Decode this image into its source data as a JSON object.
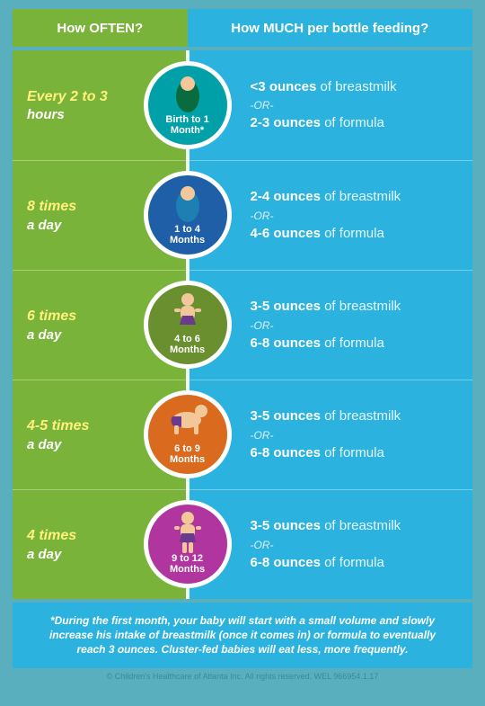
{
  "header": {
    "left": "How OFTEN?",
    "right": "How MUCH per bottle feeding?"
  },
  "colors": {
    "green": "#7ab33a",
    "blue": "#2bb2de",
    "yellow": "#fff27a",
    "white": "#ffffff"
  },
  "rows": [
    {
      "frequency_num": "Every 2 to 3",
      "frequency_unit": "hours",
      "age_label": "Birth to 1\nMonth*",
      "circle_color": "#00a0a8",
      "icon": "swaddle",
      "breastmilk": "<3 ounces",
      "formula": "2-3 ounces"
    },
    {
      "frequency_num": "8 times",
      "frequency_unit": "a day",
      "age_label": "1 to 4\nMonths",
      "circle_color": "#1e5fa8",
      "icon": "swaddle2",
      "breastmilk": "2-4 ounces",
      "formula": "4-6 ounces"
    },
    {
      "frequency_num": "6 times",
      "frequency_unit": "a day",
      "age_label": "4 to 6\nMonths",
      "circle_color": "#6a8f2f",
      "icon": "sitting",
      "breastmilk": "3-5 ounces",
      "formula": "6-8 ounces"
    },
    {
      "frequency_num": "4-5 times",
      "frequency_unit": "a day",
      "age_label": "6 to 9\nMonths",
      "circle_color": "#d96a1e",
      "icon": "crawling",
      "breastmilk": "3-5 ounces",
      "formula": "6-8 ounces"
    },
    {
      "frequency_num": "4 times",
      "frequency_unit": "a day",
      "age_label": "9 to 12\nMonths",
      "circle_color": "#b0359f",
      "icon": "standing",
      "breastmilk": "3-5 ounces",
      "formula": "6-8 ounces"
    }
  ],
  "labels": {
    "of_breastmilk": "of breastmilk",
    "of_formula": "of formula",
    "or": "-OR-"
  },
  "footer": "*During the first month, your baby will start with a small volume and slowly increase his intake of breastmilk (once it comes in) or formula to eventually reach 3 ounces. Cluster-fed babies will eat less, more frequently.",
  "copyright": "© Children's Healthcare of Atlanta Inc. All rights reserved. WEL 966954.1.17"
}
